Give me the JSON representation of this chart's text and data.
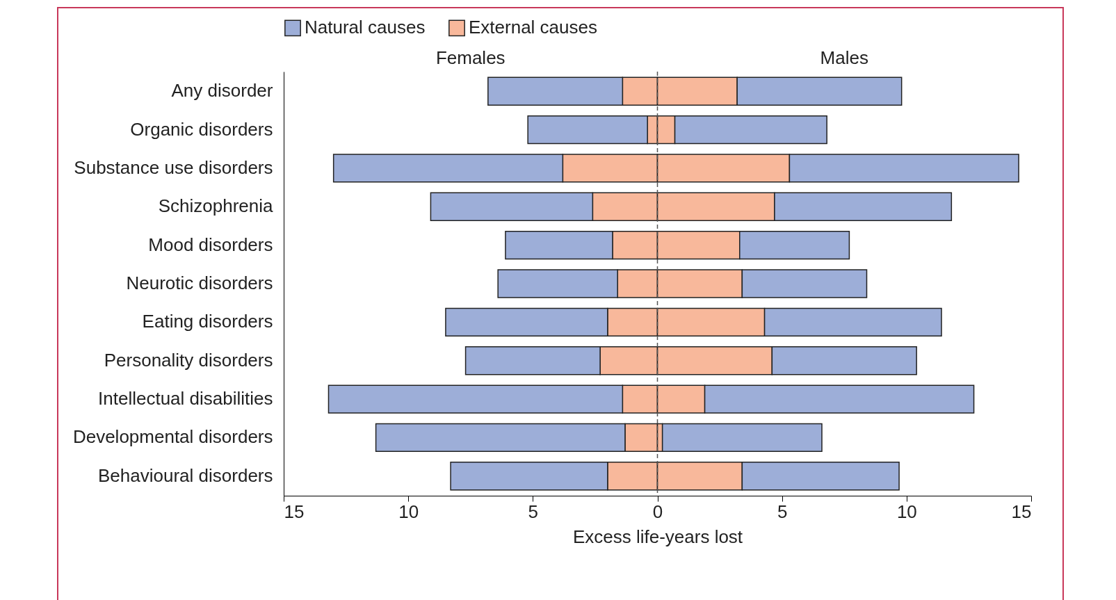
{
  "chart_data": {
    "type": "bar",
    "orientation": "horizontal",
    "stacked": true,
    "categories": [
      "Any disorder",
      "Organic disorders",
      "Substance use disorders",
      "Schizophrenia",
      "Mood disorders",
      "Neurotic disorders",
      "Eating disorders",
      "Personality disorders",
      "Intellectual disabilities",
      "Developmental disorders",
      "Behavioural disorders"
    ],
    "series": [
      {
        "name": "External causes",
        "color": "#f8b89b",
        "values": [
          -1.4,
          -0.4,
          -3.8,
          -2.6,
          -1.8,
          -1.6,
          -2.0,
          -2.3,
          -1.4,
          -1.3,
          -2.0
        ]
      },
      {
        "name": "Natural causes",
        "color": "#9daed8",
        "values": [
          -5.4,
          -4.8,
          -9.2,
          -6.5,
          -4.3,
          -4.8,
          -6.5,
          -5.4,
          -11.8,
          -10.0,
          -6.3
        ]
      },
      {
        "color": "#f8b89b",
        "values": [
          3.2,
          0.7,
          5.3,
          4.7,
          3.3,
          3.4,
          4.3,
          4.6,
          1.9,
          0.2,
          3.4
        ]
      },
      {
        "color": "#9daed8",
        "values": [
          6.6,
          6.1,
          9.2,
          7.1,
          4.4,
          5.0,
          7.1,
          5.8,
          10.8,
          6.4,
          6.3
        ]
      }
    ],
    "xlim": [
      -15,
      15
    ],
    "xticks": [
      {
        "value": -15,
        "label": "15"
      },
      {
        "value": -10,
        "label": "10"
      },
      {
        "value": -5,
        "label": "5"
      },
      0,
      5,
      10,
      15
    ],
    "xlabel": "Excess life-years lost",
    "annotations": [
      "Females",
      "Males"
    ],
    "ref_lines": [
      {
        "axis": "x",
        "value": 0,
        "line_style": "dashed",
        "color": "#555555"
      }
    ],
    "legend": "top",
    "grid": false
  }
}
